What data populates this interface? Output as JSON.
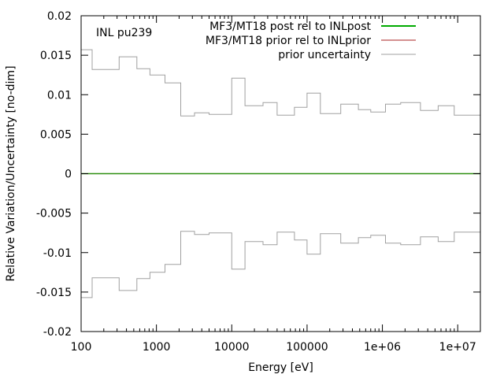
{
  "chart_data": {
    "type": "line",
    "annotation": "INL pu239",
    "xlabel": "Energy [eV]",
    "ylabel": "Relative Variation/Uncertainty [no-dim]",
    "xscale": "log",
    "xlim": [
      100,
      20000000
    ],
    "ylim": [
      -0.02,
      0.02
    ],
    "grid": false,
    "legend_position": "top-right",
    "x_ticks": [
      {
        "value": 100,
        "label": "100"
      },
      {
        "value": 1000,
        "label": "1000"
      },
      {
        "value": 10000,
        "label": "10000"
      },
      {
        "value": 100000,
        "label": "100000"
      },
      {
        "value": 1000000,
        "label": "1e+06"
      },
      {
        "value": 10000000,
        "label": "1e+07"
      }
    ],
    "y_ticks": [
      {
        "value": 0.02,
        "label": "0.02"
      },
      {
        "value": 0.015,
        "label": "0.015"
      },
      {
        "value": 0.01,
        "label": "0.01"
      },
      {
        "value": 0.005,
        "label": "0.005"
      },
      {
        "value": 0,
        "label": "0"
      },
      {
        "value": -0.005,
        "label": "-0.005"
      },
      {
        "value": -0.01,
        "label": "-0.01"
      },
      {
        "value": -0.015,
        "label": "-0.015"
      },
      {
        "value": -0.02,
        "label": "-0.02"
      }
    ],
    "bin_edges": [
      100,
      140,
      320,
      550,
      820,
      1300,
      2100,
      3200,
      5000,
      10000,
      15000,
      26000,
      40000,
      68000,
      100000,
      150000,
      280000,
      480000,
      700000,
      1100000,
      1750000,
      3200000,
      5500000,
      9000000,
      20000000
    ],
    "series": [
      {
        "name": "MF3/MT18 post rel to INLpost",
        "color": "#00aa00",
        "kind": "step",
        "values": [
          0,
          0,
          0,
          0,
          0,
          0,
          0,
          0,
          0,
          0,
          0,
          0,
          0,
          0,
          0,
          0,
          0,
          0,
          0,
          0,
          0,
          0,
          0,
          0
        ]
      },
      {
        "name": "MF3/MT18 prior rel to INLprior",
        "color": "#aa2222",
        "kind": "step",
        "values": [
          0,
          0,
          0,
          0,
          0,
          0,
          0,
          0,
          0,
          0,
          0,
          0,
          0,
          0,
          0,
          0,
          0,
          0,
          0,
          0,
          0,
          0,
          0,
          0
        ]
      },
      {
        "name": "prior uncertainty",
        "color": "#a0a0a0",
        "kind": "symmetric-step",
        "values": [
          0.0157,
          0.0132,
          0.0148,
          0.0133,
          0.0125,
          0.0115,
          0.0073,
          0.0077,
          0.0075,
          0.0121,
          0.0086,
          0.009,
          0.0074,
          0.0084,
          0.0102,
          0.0076,
          0.0088,
          0.0081,
          0.0078,
          0.0088,
          0.009,
          0.008,
          0.0086,
          0.0074
        ]
      }
    ]
  }
}
